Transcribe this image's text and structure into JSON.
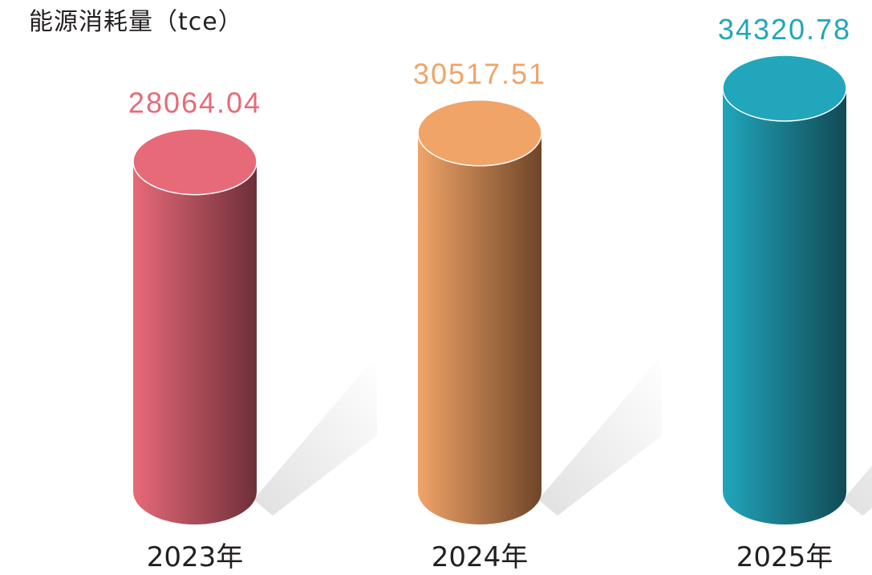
{
  "chart_data": {
    "type": "bar",
    "title": "能源消耗量（tce）",
    "categories": [
      "2023年",
      "2024年",
      "2025年"
    ],
    "values": [
      28064.04,
      30517.51,
      34320.78
    ],
    "value_labels": [
      "28064.04",
      "30517.51",
      "34320.78"
    ],
    "colors": [
      "#e76a78",
      "#f0a468",
      "#21a6bb"
    ],
    "dark_colors": [
      "#6e2f39",
      "#6f4528",
      "#114a55"
    ],
    "ylim": [
      0,
      34320.78
    ],
    "grid": false,
    "legend": "none",
    "style": "3d-cylinder"
  }
}
